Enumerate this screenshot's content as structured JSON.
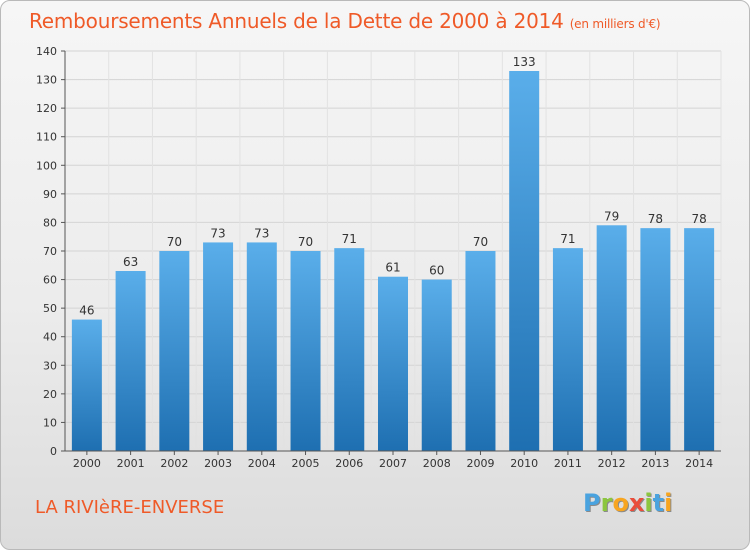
{
  "header": {
    "title": "Remboursements Annuels de la Dette de 2000 à 2014",
    "unit": "(en milliers d'€)"
  },
  "footer": {
    "commune": "LA RIVIèRE-ENVERSE",
    "logo": [
      "P",
      "r",
      "o",
      "x",
      "i",
      "t",
      "i"
    ]
  },
  "colors": {
    "title": "#ef5a28",
    "bar_light": "#5aaeea",
    "bar_dark": "#1e6fb1",
    "logo": [
      "#4aa3df",
      "#8cc63e",
      "#f7a520",
      "#e94e3c",
      "#8cc63e",
      "#4aa3df",
      "#f7a520"
    ]
  },
  "chart_data": {
    "type": "bar",
    "title": "Remboursements Annuels de la Dette de 2000 à 2014",
    "ylabel": "en milliers d'€",
    "xlabel": "",
    "categories": [
      "2000",
      "2001",
      "2002",
      "2003",
      "2004",
      "2005",
      "2006",
      "2007",
      "2008",
      "2009",
      "2010",
      "2011",
      "2012",
      "2013",
      "2014"
    ],
    "values": [
      46,
      63,
      70,
      73,
      73,
      70,
      71,
      61,
      60,
      70,
      133,
      71,
      79,
      78,
      78
    ],
    "ylim": [
      0,
      140
    ],
    "yticks": [
      0,
      10,
      20,
      30,
      40,
      50,
      60,
      70,
      80,
      90,
      100,
      110,
      120,
      130,
      140
    ],
    "grid": true
  }
}
